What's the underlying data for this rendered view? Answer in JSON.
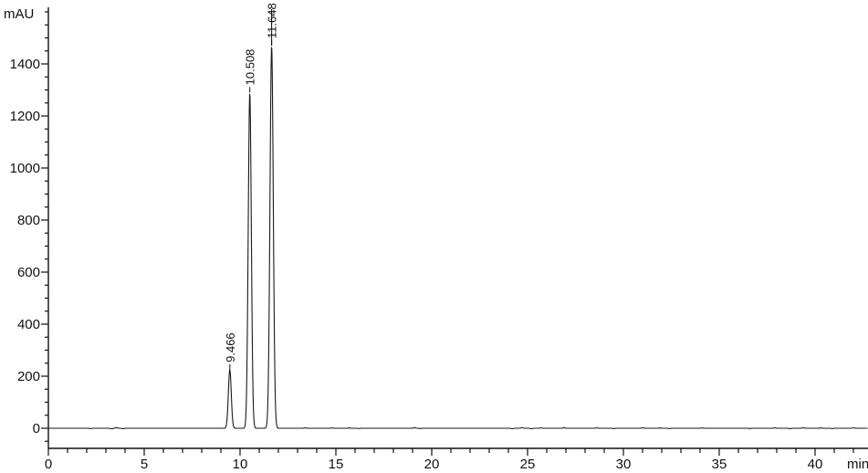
{
  "chart_data": {
    "type": "line",
    "title": "",
    "subtitle": "",
    "description": "HPLC-DAD chromatogram with three resolved peaks",
    "xlabel": "min",
    "ylabel": "mAU",
    "x_axis": {
      "min": 0,
      "max": 42.76,
      "major_tick_interval": 5,
      "minor_tick_interval": 1,
      "tick_labels": [
        "0",
        "5",
        "10",
        "15",
        "20",
        "25",
        "30",
        "35",
        "40"
      ],
      "unit_label": "min"
    },
    "y_axis": {
      "min": -75,
      "max": 1615,
      "major_tick_interval": 200,
      "minor_tick_interval": 50,
      "tick_labels": [
        "0",
        "200",
        "400",
        "600",
        "800",
        "1000",
        "1200",
        "1400"
      ],
      "unit_label": "mAU"
    },
    "grid": "off",
    "legend": "none",
    "line_color": "#1a1a1a",
    "axis_color": "#111111",
    "background_color": "#ffffff",
    "baseline_mAU": 0,
    "peaks": [
      {
        "label": "9.466",
        "retention_time_min": 9.466,
        "height_mAU": 225,
        "sigma_min": 0.075,
        "label_line_through": false
      },
      {
        "label": "10.508",
        "retention_time_min": 10.508,
        "height_mAU": 1290,
        "sigma_min": 0.08,
        "label_line_through": false
      },
      {
        "label": "11.648",
        "retention_time_min": 11.648,
        "height_mAU": 1470,
        "sigma_min": 0.085,
        "label_line_through": true
      }
    ],
    "noise_points_min_mAU": [
      [
        2.2,
        -1.5
      ],
      [
        3.3,
        -2.2
      ],
      [
        3.55,
        2.6
      ],
      [
        3.9,
        -2.0
      ],
      [
        13.4,
        1.8
      ],
      [
        14.8,
        1.5
      ],
      [
        15.7,
        1.4
      ],
      [
        16.2,
        -1.3
      ],
      [
        19.1,
        2.4
      ],
      [
        19.4,
        -1.2
      ],
      [
        24.2,
        -2.0
      ],
      [
        24.7,
        2.6
      ],
      [
        25.2,
        -2.2
      ],
      [
        25.7,
        1.6
      ],
      [
        26.9,
        2.2
      ],
      [
        28.6,
        1.6
      ],
      [
        29.5,
        -1.4
      ],
      [
        31.0,
        2.0
      ],
      [
        31.9,
        1.4
      ],
      [
        32.4,
        -1.5
      ],
      [
        34.1,
        1.2
      ],
      [
        36.6,
        -1.2
      ],
      [
        37.9,
        2.0
      ],
      [
        38.7,
        -2.0
      ],
      [
        39.4,
        2.2
      ],
      [
        40.3,
        1.4
      ],
      [
        40.9,
        -1.5
      ],
      [
        42.0,
        1.5
      ]
    ]
  }
}
